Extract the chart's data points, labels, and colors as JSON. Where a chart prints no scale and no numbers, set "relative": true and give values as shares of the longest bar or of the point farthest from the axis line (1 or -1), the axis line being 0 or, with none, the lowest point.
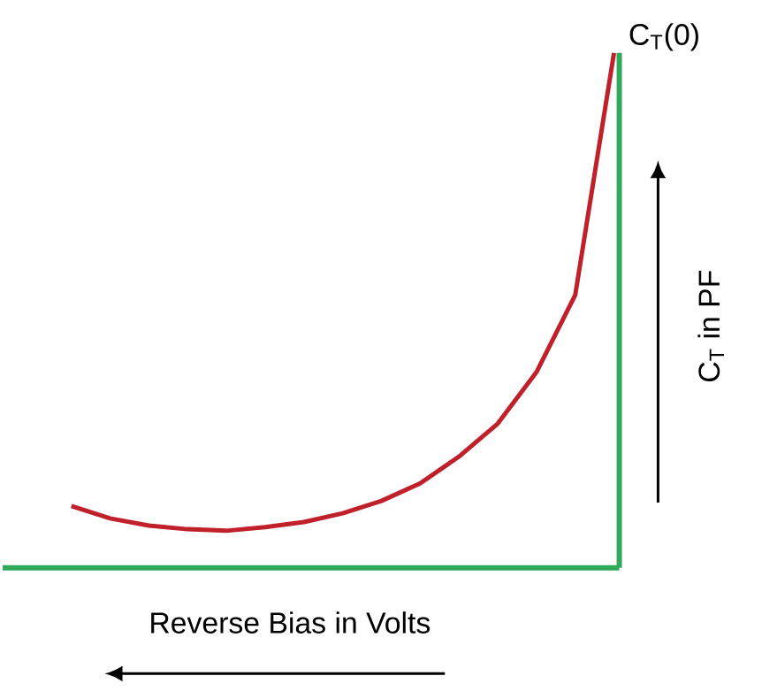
{
  "chart_data": {
    "type": "line",
    "relative": true,
    "marker": "none",
    "categories": [
      null,
      null,
      null,
      null,
      null,
      null,
      null,
      null,
      null,
      null,
      null,
      null,
      null,
      null,
      null
    ],
    "series": [
      {
        "color": "#c0202a",
        "values": [
          0.12,
          0.096,
          0.082,
          0.075,
          0.072,
          0.079,
          0.089,
          0.106,
          0.13,
          0.164,
          0.216,
          0.28,
          0.38,
          0.53,
          1.0
        ]
      }
    ],
    "xlabel": "Reverse Bias in Volts",
    "ylabel": "C$_{T}$ in PF",
    "annotations": [
      "C$_{T}$(0)"
    ]
  }
}
